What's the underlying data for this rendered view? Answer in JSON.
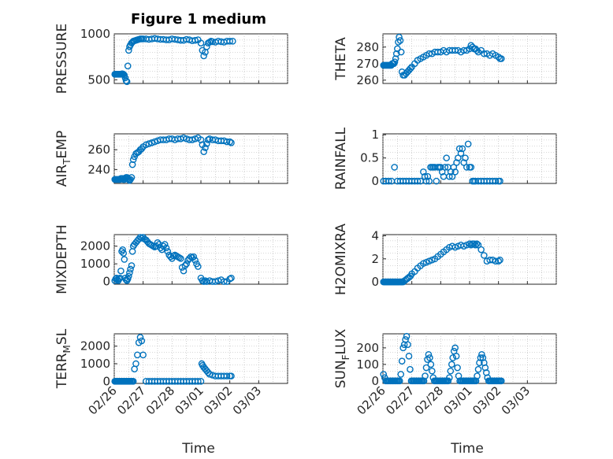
{
  "chart_data": {
    "type": "scatter",
    "title": "Figure 1 medium",
    "xlabel": "Time",
    "x_tick_labels": [
      "02/26",
      "02/27",
      "02/28",
      "03/01",
      "03/02",
      "03/03"
    ],
    "xlim": [
      0,
      6
    ],
    "marker": "circle",
    "color": "#0072BD",
    "grid": "on",
    "panels": [
      {
        "ylabel": "PRESSURE",
        "ylim": [
          460,
          1000
        ],
        "yticks": [
          500,
          1000
        ],
        "ytick_labels": [
          "500",
          "1000"
        ],
        "x": [
          0.02,
          0.05,
          0.08,
          0.11,
          0.14,
          0.17,
          0.2,
          0.23,
          0.26,
          0.29,
          0.32,
          0.35,
          0.38,
          0.41,
          0.44,
          0.47,
          0.5,
          0.53,
          0.56,
          0.6,
          0.63,
          0.66,
          0.7,
          0.75,
          0.8,
          0.85,
          0.9,
          0.95,
          1.0,
          1.1,
          1.2,
          1.3,
          1.4,
          1.5,
          1.6,
          1.7,
          1.8,
          1.9,
          2.0,
          2.1,
          2.2,
          2.3,
          2.4,
          2.5,
          2.6,
          2.7,
          2.8,
          2.9,
          3.0,
          3.05,
          3.1,
          3.15,
          3.2,
          3.25,
          3.3,
          3.35,
          3.4,
          3.5,
          3.6,
          3.7,
          3.8,
          3.9,
          4.0,
          4.1
        ],
        "y": [
          560,
          560,
          560,
          560,
          560,
          560,
          560,
          560,
          565,
          565,
          560,
          550,
          520,
          490,
          480,
          650,
          820,
          860,
          880,
          900,
          910,
          920,
          925,
          930,
          935,
          940,
          945,
          945,
          945,
          945,
          940,
          945,
          950,
          945,
          940,
          940,
          935,
          935,
          945,
          940,
          935,
          930,
          930,
          940,
          935,
          925,
          930,
          935,
          900,
          820,
          760,
          800,
          860,
          900,
          910,
          920,
          915,
          910,
          920,
          915,
          910,
          920,
          920,
          920
        ]
      },
      {
        "ylabel": "THETA",
        "ylim": [
          258,
          288
        ],
        "yticks": [
          260,
          270,
          280
        ],
        "ytick_labels": [
          "260",
          "270",
          "280"
        ],
        "x": [
          0.02,
          0.05,
          0.08,
          0.11,
          0.14,
          0.17,
          0.2,
          0.23,
          0.26,
          0.29,
          0.32,
          0.35,
          0.38,
          0.41,
          0.44,
          0.47,
          0.5,
          0.53,
          0.56,
          0.6,
          0.63,
          0.66,
          0.7,
          0.75,
          0.8,
          0.85,
          0.9,
          0.95,
          1.0,
          1.1,
          1.2,
          1.3,
          1.4,
          1.5,
          1.6,
          1.7,
          1.8,
          1.9,
          2.0,
          2.1,
          2.2,
          2.3,
          2.4,
          2.5,
          2.6,
          2.7,
          2.8,
          2.9,
          3.0,
          3.05,
          3.1,
          3.15,
          3.2,
          3.25,
          3.3,
          3.4,
          3.5,
          3.6,
          3.7,
          3.8,
          3.9,
          4.0,
          4.05,
          4.1
        ],
        "y": [
          269,
          269,
          269,
          269,
          269,
          269,
          269,
          269,
          269,
          269,
          270,
          270,
          270,
          271,
          273,
          276,
          279,
          283,
          286,
          284,
          277,
          265,
          263,
          263,
          264,
          265,
          266,
          267,
          268,
          270,
          272,
          273,
          274,
          275,
          276,
          276,
          277,
          277,
          277,
          278,
          277,
          278,
          278,
          278,
          278,
          277,
          278,
          278,
          279,
          281,
          280,
          279,
          279,
          278,
          277,
          278,
          276,
          276,
          275,
          276,
          275,
          274,
          273,
          273
        ]
      },
      {
        "ylabel": "AIR_TEMP",
        "ylim": [
          226,
          276
        ],
        "yticks": [
          240,
          260
        ],
        "ytick_labels": [
          "240",
          "260"
        ],
        "x": [
          0.02,
          0.05,
          0.08,
          0.11,
          0.14,
          0.17,
          0.2,
          0.23,
          0.26,
          0.29,
          0.32,
          0.35,
          0.38,
          0.41,
          0.44,
          0.47,
          0.5,
          0.53,
          0.56,
          0.6,
          0.63,
          0.66,
          0.7,
          0.75,
          0.8,
          0.85,
          0.9,
          0.95,
          1.0,
          1.1,
          1.2,
          1.3,
          1.4,
          1.5,
          1.6,
          1.7,
          1.8,
          1.9,
          2.0,
          2.1,
          2.2,
          2.3,
          2.4,
          2.5,
          2.6,
          2.7,
          2.8,
          2.9,
          3.0,
          3.05,
          3.1,
          3.15,
          3.2,
          3.25,
          3.3,
          3.4,
          3.5,
          3.6,
          3.7,
          3.8,
          3.9,
          4.0,
          4.05
        ],
        "y": [
          230,
          230,
          230,
          230,
          230,
          230,
          230,
          231,
          231,
          231,
          230,
          230,
          231,
          232,
          232,
          231,
          230,
          229,
          230,
          232,
          245,
          250,
          253,
          256,
          257,
          258,
          260,
          261,
          263,
          265,
          266,
          267,
          268,
          269,
          270,
          270,
          270,
          271,
          271,
          270,
          271,
          271,
          272,
          271,
          270,
          270,
          271,
          272,
          270,
          265,
          258,
          262,
          266,
          270,
          271,
          270,
          270,
          269,
          269,
          269,
          268,
          268,
          267
        ]
      },
      {
        "ylabel": "RAINFALL",
        "ylim": [
          -0.05,
          1.02
        ],
        "yticks": [
          0,
          0.5,
          1
        ],
        "ytick_labels": [
          "0",
          "0.5",
          "1"
        ],
        "x": [
          0.02,
          0.1,
          0.2,
          0.3,
          0.4,
          0.5,
          0.6,
          0.7,
          0.8,
          0.9,
          1.0,
          1.1,
          1.2,
          1.3,
          1.4,
          1.45,
          1.5,
          1.55,
          1.6,
          1.65,
          1.7,
          1.75,
          1.8,
          1.85,
          1.9,
          1.95,
          2.0,
          2.05,
          2.1,
          2.15,
          2.2,
          2.25,
          2.3,
          2.35,
          2.4,
          2.45,
          2.5,
          2.55,
          2.6,
          2.65,
          2.7,
          2.75,
          2.8,
          2.85,
          2.9,
          2.95,
          3.0,
          3.05,
          3.1,
          3.15,
          3.2,
          3.3,
          3.4,
          3.5,
          3.6,
          3.7,
          3.8,
          3.9,
          4.0,
          4.05
        ],
        "y": [
          0,
          0,
          0,
          0,
          0.3,
          0,
          0,
          0,
          0,
          0,
          0,
          0,
          0,
          0,
          0.2,
          0.1,
          0,
          0.1,
          0,
          0.3,
          0.3,
          0.3,
          0.3,
          0,
          0.3,
          0.3,
          0.3,
          0.2,
          0.1,
          0.3,
          0.5,
          0.3,
          0.1,
          0.2,
          0.1,
          0.3,
          0.2,
          0.4,
          0.5,
          0.7,
          0.6,
          0.7,
          0.4,
          0.5,
          0.3,
          0.8,
          0.3,
          0.3,
          0,
          0,
          0,
          0,
          0,
          0,
          0,
          0,
          0,
          0,
          0,
          0
        ]
      },
      {
        "ylabel": "MIXDEPTH",
        "ylim": [
          -150,
          2650
        ],
        "yticks": [
          0,
          1000,
          2000
        ],
        "ytick_labels": [
          "0",
          "1000",
          "2000"
        ],
        "x": [
          0.02,
          0.05,
          0.08,
          0.11,
          0.14,
          0.17,
          0.2,
          0.23,
          0.26,
          0.29,
          0.32,
          0.35,
          0.38,
          0.41,
          0.44,
          0.47,
          0.5,
          0.53,
          0.56,
          0.6,
          0.63,
          0.66,
          0.7,
          0.75,
          0.8,
          0.85,
          0.9,
          0.95,
          1.0,
          1.05,
          1.1,
          1.15,
          1.2,
          1.25,
          1.3,
          1.35,
          1.4,
          1.45,
          1.5,
          1.55,
          1.6,
          1.65,
          1.7,
          1.75,
          1.8,
          1.85,
          1.9,
          1.95,
          2.0,
          2.05,
          2.1,
          2.15,
          2.2,
          2.25,
          2.3,
          2.35,
          2.4,
          2.45,
          2.5,
          2.55,
          2.6,
          2.65,
          2.7,
          2.75,
          2.8,
          2.85,
          2.9,
          3.0,
          3.05,
          3.1,
          3.15,
          3.2,
          3.3,
          3.4,
          3.5,
          3.6,
          3.7,
          3.8,
          3.9,
          4.0,
          4.05
        ],
        "y": [
          50,
          150,
          200,
          100,
          50,
          150,
          200,
          600,
          1700,
          1800,
          1600,
          1250,
          200,
          100,
          50,
          150,
          300,
          500,
          700,
          900,
          1700,
          2000,
          2100,
          2200,
          2300,
          2400,
          2500,
          2450,
          2500,
          2400,
          2350,
          2250,
          2150,
          2100,
          2050,
          2000,
          1950,
          2000,
          2200,
          2100,
          1900,
          1800,
          2000,
          2100,
          1900,
          1700,
          1500,
          1400,
          1300,
          1450,
          1500,
          1450,
          1400,
          1350,
          1300,
          800,
          600,
          900,
          1000,
          1200,
          1300,
          1400,
          1350,
          1400,
          1200,
          1000,
          850,
          200,
          50,
          0,
          50,
          0,
          50,
          0,
          0,
          50,
          100,
          0,
          0,
          150,
          200
        ]
      },
      {
        "ylabel": "H2OMIXRA",
        "ylim": [
          -0.2,
          4.1
        ],
        "yticks": [
          0,
          2,
          4
        ],
        "ytick_labels": [
          "0",
          "2",
          "4"
        ],
        "x": [
          0.02,
          0.05,
          0.08,
          0.11,
          0.14,
          0.17,
          0.2,
          0.23,
          0.26,
          0.29,
          0.32,
          0.35,
          0.38,
          0.41,
          0.44,
          0.47,
          0.5,
          0.53,
          0.56,
          0.6,
          0.63,
          0.66,
          0.7,
          0.75,
          0.8,
          0.85,
          0.9,
          0.95,
          1.0,
          1.1,
          1.2,
          1.3,
          1.4,
          1.5,
          1.6,
          1.7,
          1.8,
          1.9,
          2.0,
          2.1,
          2.2,
          2.3,
          2.4,
          2.5,
          2.6,
          2.7,
          2.8,
          2.9,
          3.0,
          3.05,
          3.1,
          3.15,
          3.2,
          3.25,
          3.3,
          3.4,
          3.5,
          3.6,
          3.7,
          3.8,
          3.9,
          4.0,
          4.05
        ],
        "y": [
          0,
          0,
          0,
          0,
          0,
          0,
          0,
          0,
          0,
          0,
          0,
          0,
          0,
          0,
          0,
          0,
          0,
          0,
          0,
          0,
          0,
          0,
          0,
          0.1,
          0.2,
          0.3,
          0.4,
          0.5,
          0.7,
          0.9,
          1.2,
          1.4,
          1.6,
          1.7,
          1.8,
          1.9,
          2.0,
          2.2,
          2.4,
          2.6,
          2.8,
          3.0,
          3.1,
          3.0,
          3.1,
          3.2,
          3.1,
          3.2,
          3.3,
          3.2,
          3.3,
          3.3,
          3.2,
          3.3,
          3.2,
          2.8,
          2.3,
          1.8,
          1.9,
          1.9,
          1.8,
          1.8,
          1.9
        ]
      },
      {
        "ylabel": "TERR_MSL",
        "ylim": [
          -120,
          2700
        ],
        "yticks": [
          0,
          1000,
          2000
        ],
        "ytick_labels": [
          "0",
          "1000",
          "2000"
        ],
        "x": [
          0.02,
          0.05,
          0.08,
          0.11,
          0.14,
          0.17,
          0.2,
          0.23,
          0.26,
          0.29,
          0.32,
          0.35,
          0.38,
          0.41,
          0.44,
          0.47,
          0.5,
          0.53,
          0.56,
          0.6,
          0.63,
          0.66,
          0.7,
          0.75,
          0.8,
          0.85,
          0.9,
          0.95,
          1.0,
          1.1,
          1.2,
          1.3,
          1.4,
          1.5,
          1.6,
          1.7,
          1.8,
          1.9,
          2.0,
          2.1,
          2.2,
          2.3,
          2.4,
          2.5,
          2.6,
          2.7,
          2.8,
          2.9,
          3.0,
          3.03,
          3.06,
          3.1,
          3.15,
          3.2,
          3.25,
          3.3,
          3.4,
          3.5,
          3.6,
          3.7,
          3.8,
          3.9,
          4.0,
          4.05
        ],
        "y": [
          0,
          0,
          0,
          0,
          0,
          0,
          0,
          0,
          0,
          0,
          0,
          0,
          0,
          0,
          0,
          0,
          0,
          0,
          0,
          0,
          0,
          0,
          700,
          1000,
          1500,
          2200,
          2500,
          2300,
          1500,
          0,
          0,
          0,
          0,
          0,
          0,
          0,
          0,
          0,
          0,
          0,
          0,
          0,
          0,
          0,
          0,
          0,
          0,
          0,
          0,
          1000,
          900,
          800,
          700,
          600,
          500,
          400,
          350,
          300,
          300,
          300,
          300,
          300,
          300,
          300
        ]
      },
      {
        "ylabel": "SUN_FLUX",
        "ylim": [
          -15,
          285
        ],
        "yticks": [
          0,
          100,
          200
        ],
        "ytick_labels": [
          "0",
          "100",
          "200"
        ],
        "x": [
          0.02,
          0.06,
          0.1,
          0.14,
          0.18,
          0.22,
          0.26,
          0.3,
          0.34,
          0.38,
          0.42,
          0.46,
          0.5,
          0.54,
          0.58,
          0.62,
          0.66,
          0.7,
          0.74,
          0.78,
          0.82,
          0.86,
          0.9,
          0.94,
          0.98,
          1.02,
          1.06,
          1.1,
          1.14,
          1.18,
          1.22,
          1.26,
          1.3,
          1.34,
          1.38,
          1.42,
          1.46,
          1.5,
          1.54,
          1.58,
          1.62,
          1.66,
          1.7,
          1.74,
          1.78,
          1.82,
          1.86,
          1.9,
          1.94,
          1.98,
          2.02,
          2.06,
          2.1,
          2.14,
          2.18,
          2.22,
          2.26,
          2.3,
          2.34,
          2.38,
          2.42,
          2.46,
          2.5,
          2.54,
          2.58,
          2.62,
          2.66,
          2.7,
          2.74,
          2.78,
          2.82,
          2.86,
          2.9,
          2.94,
          2.98,
          3.02,
          3.06,
          3.1,
          3.14,
          3.18,
          3.22,
          3.26,
          3.3,
          3.34,
          3.38,
          3.42,
          3.46,
          3.5,
          3.54,
          3.58,
          3.62,
          3.66,
          3.7,
          3.74,
          3.78,
          3.82,
          3.86,
          3.9,
          3.94,
          3.98,
          4.02,
          4.06,
          4.1
        ],
        "y": [
          40,
          20,
          0,
          0,
          0,
          0,
          0,
          0,
          0,
          0,
          0,
          0,
          0,
          0,
          0,
          40,
          120,
          200,
          220,
          250,
          270,
          220,
          150,
          70,
          0,
          0,
          0,
          0,
          0,
          0,
          0,
          0,
          0,
          0,
          0,
          0,
          30,
          80,
          130,
          160,
          140,
          100,
          60,
          20,
          0,
          0,
          0,
          0,
          0,
          0,
          0,
          0,
          0,
          0,
          0,
          0,
          0,
          20,
          60,
          100,
          140,
          180,
          200,
          150,
          80,
          30,
          0,
          0,
          0,
          0,
          0,
          0,
          0,
          0,
          0,
          0,
          0,
          0,
          0,
          0,
          0,
          30,
          70,
          110,
          140,
          160,
          140,
          110,
          80,
          50,
          20,
          0,
          0,
          0,
          0,
          0,
          0,
          0,
          0,
          0,
          0,
          0,
          0
        ]
      }
    ]
  }
}
